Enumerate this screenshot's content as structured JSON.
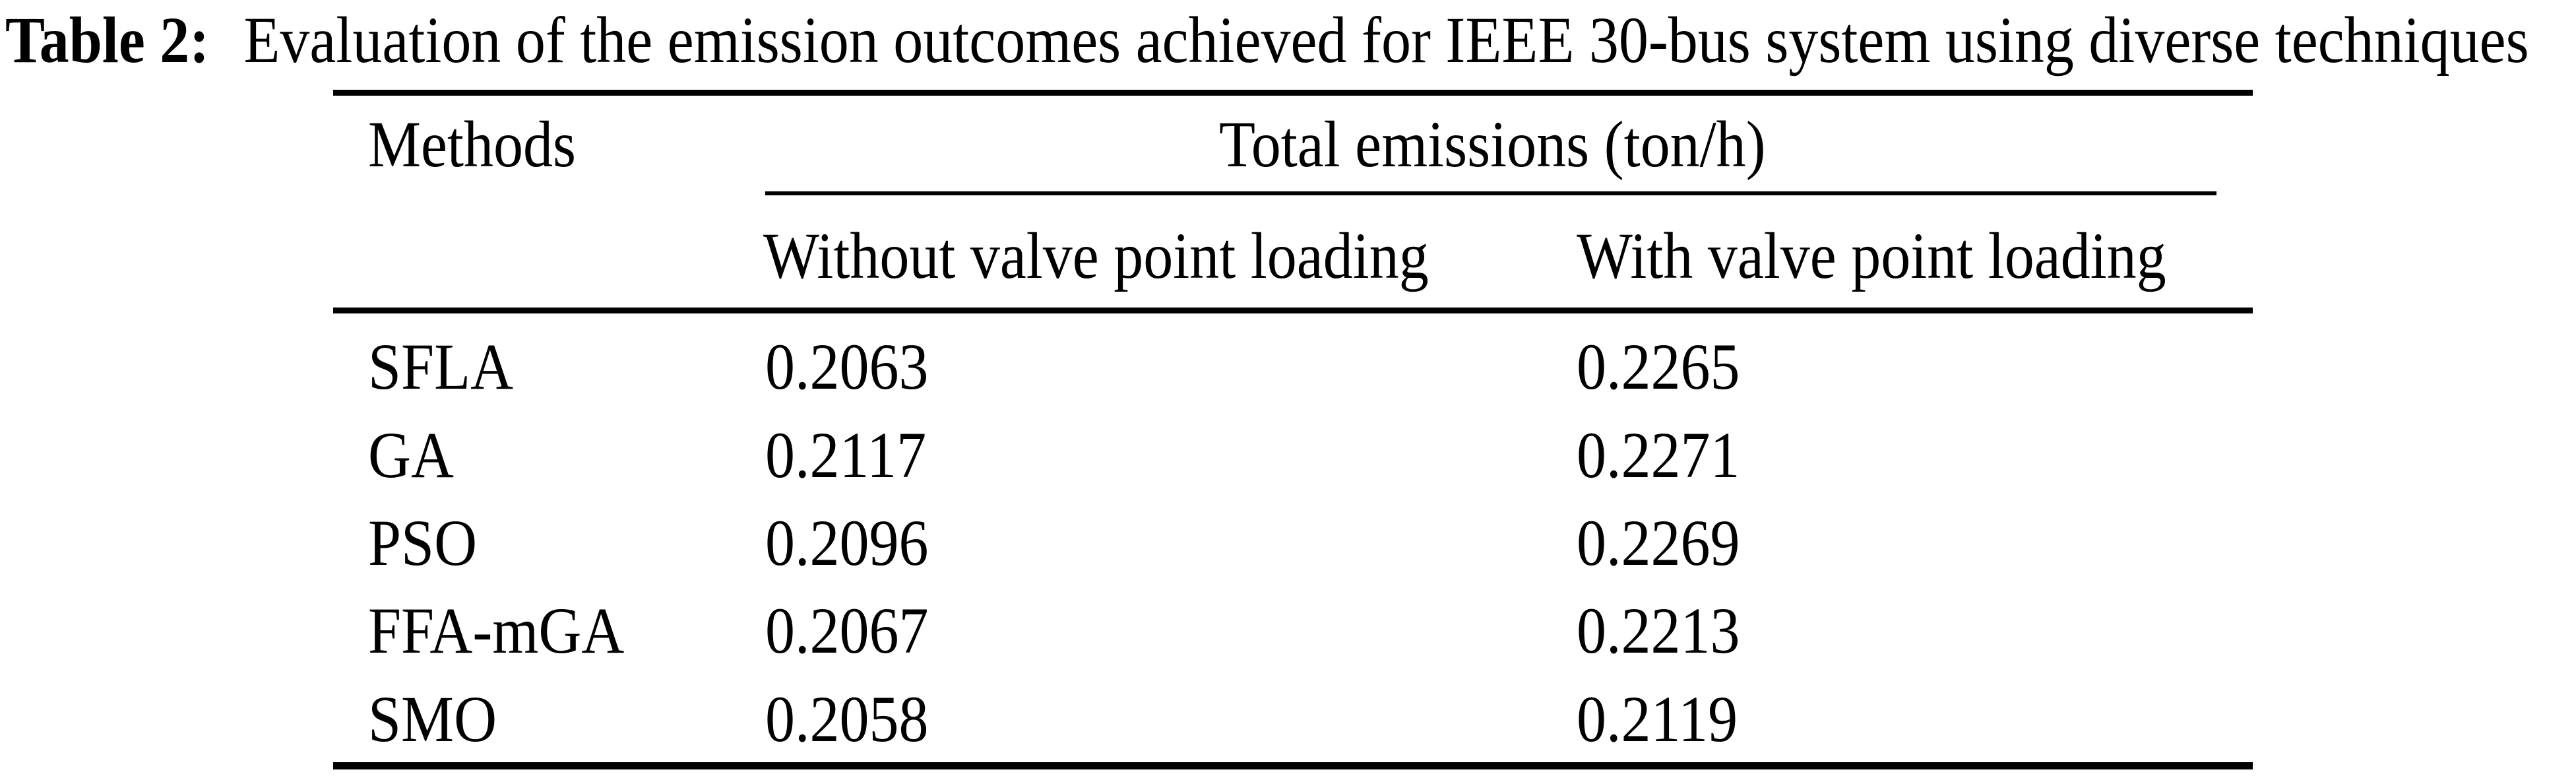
{
  "caption": {
    "label": "Table 2:",
    "text": "Evaluation of the emission outcomes achieved for IEEE 30-bus system using diverse techniques"
  },
  "table": {
    "methods_header": "Methods",
    "group_header": "Total emissions (ton/h)",
    "sub_without": "Without valve point loading",
    "sub_with": "With valve point loading",
    "rows": [
      {
        "method": "SFLA",
        "without": "0.2063",
        "with": "0.2265"
      },
      {
        "method": "GA",
        "without": "0.2117",
        "with": "0.2271"
      },
      {
        "method": "PSO",
        "without": "0.2096",
        "with": "0.2269"
      },
      {
        "method": "FFA-mGA",
        "without": "0.2067",
        "with": "0.2213"
      },
      {
        "method": "SMO",
        "without": "0.2058",
        "with": "0.2119"
      }
    ]
  },
  "colors": {
    "text": "#000000",
    "background": "#ffffff"
  }
}
